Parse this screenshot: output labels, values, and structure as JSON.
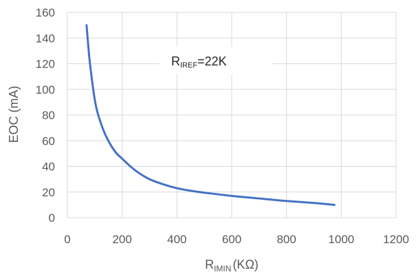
{
  "chart_data": {
    "type": "line",
    "title": "",
    "xlabel": "RIMIN (KΩ)",
    "xlabel_main": "R",
    "xlabel_sub": "IMIN",
    "xlabel_unit": "(KΩ)",
    "ylabel": "EOC (mA)",
    "xlim": [
      0,
      1200
    ],
    "ylim": [
      0,
      160
    ],
    "xticks": [
      0,
      200,
      400,
      600,
      800,
      1000,
      1200
    ],
    "yticks": [
      0,
      20,
      40,
      60,
      80,
      100,
      120,
      140,
      160
    ],
    "grid": true,
    "legend": "none",
    "annotation": {
      "text": "RIREF=22K",
      "main": "R",
      "sub": "IREF",
      "rest": "=22K"
    },
    "series": [
      {
        "color": "#4472C4",
        "x": [
          70,
          80,
          90,
          100,
          110,
          125,
          140,
          160,
          180,
          200,
          230,
          260,
          300,
          350,
          400,
          450,
          500,
          600,
          700,
          800,
          900,
          975
        ],
        "y": [
          150,
          125,
          107,
          92,
          82,
          72,
          64,
          56,
          50,
          46,
          40,
          35,
          30,
          26,
          23,
          21,
          19.5,
          17,
          15,
          13,
          11.5,
          10
        ]
      }
    ]
  }
}
